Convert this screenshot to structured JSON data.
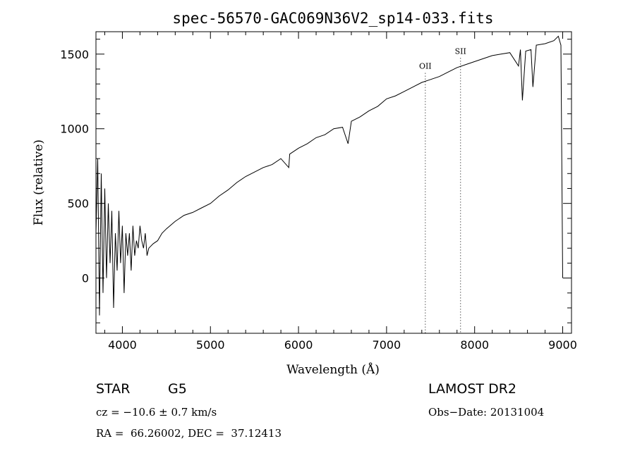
{
  "chart_data": {
    "type": "line",
    "title": "spec-56570-GAC069N36V2_sp14-033.fits",
    "xlabel": "Wavelength (Å)",
    "ylabel": "Flux (relative)",
    "xlim": [
      3700,
      9100
    ],
    "ylim": [
      -370,
      1650
    ],
    "x_ticks": [
      4000,
      5000,
      6000,
      7000,
      8000,
      9000
    ],
    "y_ticks": [
      0,
      500,
      1000,
      1500
    ],
    "grid": false,
    "series": [
      {
        "x": [
          3700,
          3720,
          3740,
          3760,
          3780,
          3800,
          3820,
          3840,
          3860,
          3880,
          3900,
          3920,
          3940,
          3960,
          3980,
          4000,
          4020,
          4040,
          4060,
          4080,
          4100,
          4120,
          4140,
          4160,
          4180,
          4200,
          4220,
          4240,
          4260,
          4280,
          4300,
          4350,
          4400,
          4450,
          4500,
          4600,
          4700,
          4800,
          4900,
          5000,
          5100,
          5200,
          5300,
          5400,
          5500,
          5600,
          5700,
          5800,
          5890,
          5900,
          6000,
          6100,
          6200,
          6300,
          6400,
          6500,
          6563,
          6600,
          6700,
          6800,
          6900,
          7000,
          7100,
          7200,
          7300,
          7400,
          7500,
          7600,
          7700,
          7800,
          7900,
          8000,
          8100,
          8200,
          8300,
          8400,
          8498,
          8520,
          8542,
          8580,
          8640,
          8662,
          8700,
          8800,
          8900,
          8950,
          8980,
          9000
        ],
        "y": [
          300,
          800,
          -250,
          700,
          -100,
          600,
          0,
          500,
          100,
          450,
          -200,
          300,
          50,
          450,
          100,
          350,
          -100,
          300,
          150,
          300,
          50,
          350,
          150,
          250,
          200,
          350,
          250,
          200,
          300,
          150,
          200,
          230,
          250,
          300,
          330,
          380,
          420,
          440,
          470,
          500,
          550,
          590,
          640,
          680,
          710,
          740,
          760,
          800,
          740,
          830,
          870,
          900,
          940,
          960,
          1000,
          1010,
          900,
          1050,
          1080,
          1120,
          1150,
          1200,
          1220,
          1250,
          1280,
          1310,
          1330,
          1350,
          1380,
          1410,
          1430,
          1450,
          1470,
          1490,
          1500,
          1510,
          1420,
          1530,
          1190,
          1520,
          1530,
          1280,
          1560,
          1570,
          1590,
          1620,
          1560,
          0
        ]
      }
    ],
    "annotations": [
      {
        "label": "OII",
        "x": 7440,
        "y": 1430
      },
      {
        "label": "SII",
        "x": 7840,
        "y": 1530
      }
    ]
  },
  "info": {
    "object_type": "STAR",
    "subclass": "G5",
    "survey": "LAMOST DR2",
    "cz": "cz = −10.6 ± 0.7 km/s",
    "obs_date": "Obs−Date: 20131004",
    "coords": "RA =  66.26002, DEC =  37.12413"
  }
}
